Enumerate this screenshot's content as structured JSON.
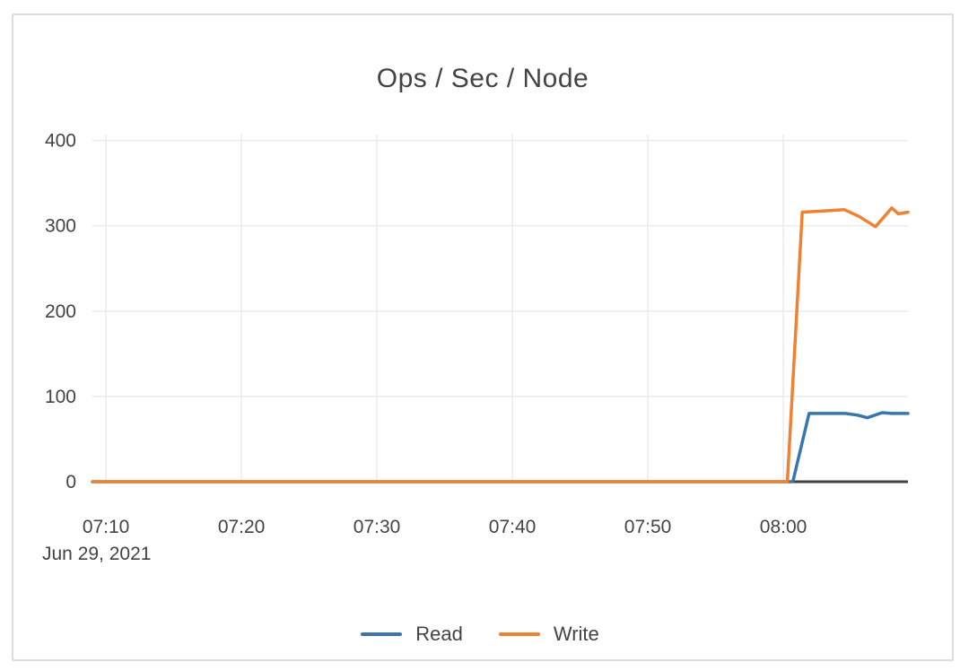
{
  "chart_data": {
    "type": "line",
    "title": "Ops / Sec / Node",
    "x_axis": {
      "date_label": "Jun 29, 2021",
      "range_minutes_after_0700": [
        9,
        69.2
      ],
      "ticks": [
        {
          "m": 10,
          "label": "07:10"
        },
        {
          "m": 20,
          "label": "07:20"
        },
        {
          "m": 30,
          "label": "07:30"
        },
        {
          "m": 40,
          "label": "07:40"
        },
        {
          "m": 50,
          "label": "07:50"
        },
        {
          "m": 60,
          "label": "08:00"
        }
      ]
    },
    "y_axis": {
      "range": [
        0,
        407
      ],
      "ticks": [
        {
          "v": 0,
          "label": "0"
        },
        {
          "v": 100,
          "label": "100"
        },
        {
          "v": 200,
          "label": "200"
        },
        {
          "v": 300,
          "label": "300"
        },
        {
          "v": 400,
          "label": "400"
        }
      ]
    },
    "series": [
      {
        "name": "Read",
        "color": "#3a76ab",
        "points": [
          [
            9,
            0
          ],
          [
            60.7,
            0
          ],
          [
            61.9,
            80
          ],
          [
            63.5,
            80
          ],
          [
            64.6,
            80
          ],
          [
            65.5,
            78
          ],
          [
            66.2,
            75
          ],
          [
            67.3,
            81
          ],
          [
            68.0,
            80
          ],
          [
            69.2,
            80
          ]
        ]
      },
      {
        "name": "Write",
        "color": "#ef8133",
        "points": [
          [
            9,
            0
          ],
          [
            60.3,
            0
          ],
          [
            61.4,
            316
          ],
          [
            62.5,
            317
          ],
          [
            64.5,
            319
          ],
          [
            65.6,
            311
          ],
          [
            66.8,
            299
          ],
          [
            68.0,
            321
          ],
          [
            68.5,
            314
          ],
          [
            69.2,
            316
          ]
        ]
      }
    ],
    "legend": [
      {
        "label": "Read",
        "color": "#3a76ab"
      },
      {
        "label": "Write",
        "color": "#ef8133"
      }
    ],
    "layout_hints": {
      "grid": true,
      "legend_position": "bottom-center",
      "gridline_color": "#ececec",
      "axis_line_color": "#424242",
      "text_color": "#434343"
    }
  }
}
